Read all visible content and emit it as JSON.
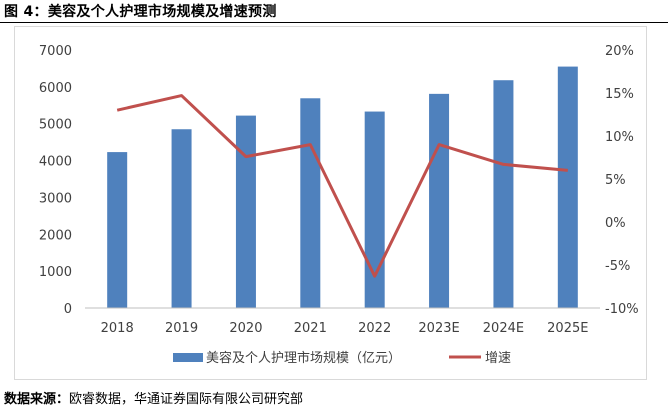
{
  "figure": {
    "title": "图 4：美容及个人护理市场规模及增速预测",
    "source_label": "数据来源：",
    "source_text": "欧睿数据，华通证券国际有限公司研究部"
  },
  "chart_data": {
    "type": "bar",
    "categories": [
      "2018",
      "2019",
      "2020",
      "2021",
      "2022",
      "2023E",
      "2024E",
      "2025E"
    ],
    "series": [
      {
        "name": "美容及个人护理市场规模（亿元）",
        "type": "bar",
        "axis": "left",
        "color": "#4f81bd",
        "values": [
          4230,
          4850,
          5220,
          5690,
          5330,
          5810,
          6180,
          6550
        ]
      },
      {
        "name": "增速",
        "type": "line",
        "axis": "right",
        "color": "#c0504d",
        "values": [
          13.0,
          14.7,
          7.6,
          9.0,
          -6.3,
          9.0,
          6.7,
          6.0
        ]
      }
    ],
    "y_left": {
      "lim": [
        0,
        7000
      ],
      "ticks": [
        0,
        1000,
        2000,
        3000,
        4000,
        5000,
        6000,
        7000
      ],
      "tick_labels": [
        "0",
        "1000",
        "2000",
        "3000",
        "4000",
        "5000",
        "6000",
        "7000"
      ]
    },
    "y_right": {
      "lim": [
        -10,
        20
      ],
      "ticks": [
        -10,
        -5,
        0,
        5,
        10,
        15,
        20
      ],
      "tick_labels": [
        "-10%",
        "-5%",
        "0%",
        "5%",
        "10%",
        "15%",
        "20%"
      ]
    },
    "grid": false,
    "legend_position": "bottom"
  }
}
